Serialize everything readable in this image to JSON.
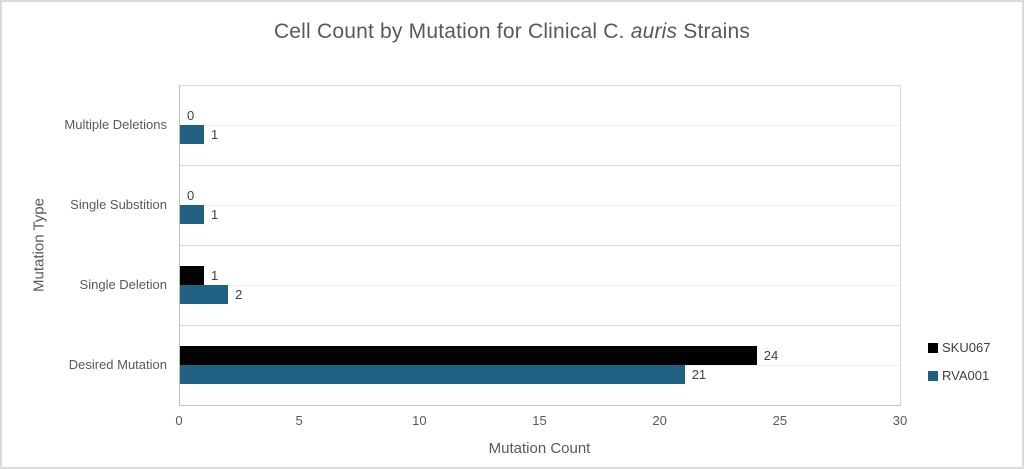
{
  "header": {
    "title_prefix": "Cell Count by Mutation for Clinical C. ",
    "title_italic": "auris",
    "title_suffix": " Strains"
  },
  "chart_data": {
    "type": "bar",
    "orientation": "horizontal",
    "title": "Cell Count by Mutation for Clinical C. auris Strains",
    "xlabel": "Mutation Count",
    "ylabel": "Mutation Type",
    "xlim": [
      0,
      30
    ],
    "xticks": [
      0,
      5,
      10,
      15,
      20,
      25,
      30
    ],
    "categories": [
      "Multiple Deletions",
      "Single Substition",
      "Single Deletion",
      "Desired Mutation"
    ],
    "series": [
      {
        "name": "SKU067",
        "color": "#000000",
        "values": [
          0,
          0,
          1,
          24
        ]
      },
      {
        "name": "RVA001",
        "color": "#1F6083",
        "values": [
          1,
          1,
          2,
          21
        ]
      }
    ],
    "legend_position": "right",
    "grid": "horizontal-only",
    "data_labels": true
  },
  "colors": {
    "background": "#FFFFFF",
    "canvas_border": "#DADADA",
    "axis_line": "#BFBFBF",
    "gridline_major": "#D9D9D9",
    "gridline_minor": "#F2F2F2",
    "axis_text": "#595959",
    "data_label_text": "#404040"
  }
}
